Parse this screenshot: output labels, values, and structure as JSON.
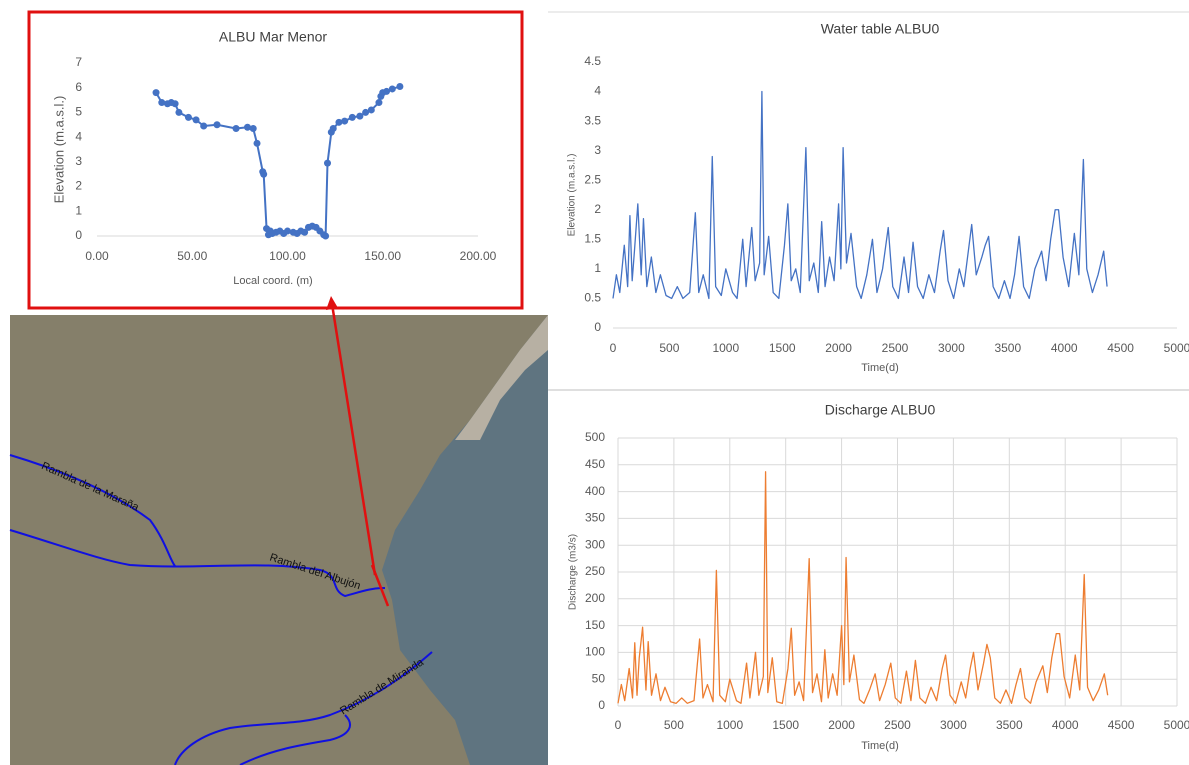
{
  "chart_data": [
    {
      "type": "line",
      "title": "ALBU Mar Menor",
      "xlabel": "Local coord. (m)",
      "ylabel": "Elevation (m.a.s.l.)",
      "color": "#4472c4",
      "markers": true,
      "grid": false,
      "x": [
        31,
        34,
        37,
        39,
        41,
        43,
        48,
        52,
        56,
        63,
        73,
        79,
        82,
        84,
        87,
        87.5,
        89,
        90,
        91,
        92,
        94,
        96,
        98,
        100,
        103,
        105,
        107,
        109,
        111,
        113,
        115,
        117,
        119,
        120,
        121,
        123,
        124,
        127,
        130,
        134,
        138,
        141,
        144,
        148,
        149,
        150,
        152,
        155,
        159
      ],
      "values": [
        5.8,
        5.4,
        5.35,
        5.4,
        5.35,
        5.0,
        4.8,
        4.7,
        4.45,
        4.5,
        4.35,
        4.4,
        4.35,
        3.75,
        2.6,
        2.5,
        0.3,
        0.05,
        0.2,
        0.1,
        0.15,
        0.2,
        0.1,
        0.2,
        0.15,
        0.1,
        0.2,
        0.15,
        0.35,
        0.4,
        0.35,
        0.2,
        0.05,
        0.0,
        2.95,
        4.2,
        4.35,
        4.6,
        4.65,
        4.8,
        4.85,
        5.0,
        5.1,
        5.4,
        5.65,
        5.8,
        5.85,
        5.95,
        6.05
      ],
      "xlim": [
        0,
        200
      ],
      "xticks": [
        {
          "value": 0,
          "label": "0.00"
        },
        {
          "value": 50,
          "label": "50.00"
        },
        {
          "value": 100,
          "label": "100.00"
        },
        {
          "value": 150,
          "label": "150.00"
        },
        {
          "value": 200,
          "label": "200.00"
        }
      ],
      "ylim": [
        0,
        7
      ],
      "yticks": [
        0,
        1,
        2,
        3,
        4,
        5,
        6,
        7
      ]
    },
    {
      "type": "line",
      "title": "Water table ALBU0",
      "xlabel": "Time(d)",
      "ylabel": "Elevation (m.a.s.l.)",
      "color": "#4472c4",
      "markers": false,
      "grid": false,
      "x": [
        0,
        30,
        60,
        100,
        130,
        150,
        170,
        190,
        220,
        250,
        270,
        300,
        340,
        380,
        420,
        470,
        520,
        570,
        620,
        680,
        730,
        760,
        800,
        850,
        880,
        910,
        960,
        1000,
        1060,
        1100,
        1150,
        1180,
        1230,
        1260,
        1300,
        1320,
        1340,
        1380,
        1420,
        1470,
        1520,
        1550,
        1580,
        1620,
        1660,
        1710,
        1740,
        1780,
        1820,
        1850,
        1880,
        1920,
        1960,
        2000,
        2020,
        2040,
        2070,
        2110,
        2160,
        2200,
        2250,
        2300,
        2340,
        2390,
        2440,
        2480,
        2530,
        2580,
        2620,
        2660,
        2700,
        2750,
        2800,
        2850,
        2900,
        2930,
        2970,
        3020,
        3070,
        3110,
        3150,
        3180,
        3220,
        3270,
        3300,
        3330,
        3370,
        3420,
        3470,
        3520,
        3560,
        3600,
        3640,
        3690,
        3740,
        3800,
        3840,
        3880,
        3920,
        3950,
        3990,
        4040,
        4090,
        4130,
        4170,
        4200,
        4250,
        4300,
        4350,
        4380
      ],
      "values": [
        0.5,
        0.9,
        0.6,
        1.4,
        0.7,
        1.9,
        0.8,
        1.3,
        2.1,
        0.9,
        1.85,
        0.7,
        1.2,
        0.6,
        0.9,
        0.55,
        0.5,
        0.7,
        0.5,
        0.6,
        1.95,
        0.6,
        0.9,
        0.5,
        2.9,
        0.7,
        0.55,
        1.0,
        0.6,
        0.5,
        1.5,
        0.7,
        1.7,
        0.8,
        1.1,
        4.0,
        0.9,
        1.55,
        0.6,
        0.5,
        1.4,
        2.1,
        0.8,
        1.0,
        0.6,
        3.05,
        0.8,
        1.1,
        0.6,
        1.8,
        0.7,
        1.2,
        0.8,
        2.1,
        1.0,
        3.05,
        1.1,
        1.6,
        0.7,
        0.5,
        0.9,
        1.5,
        0.6,
        1.0,
        1.7,
        0.7,
        0.5,
        1.2,
        0.6,
        1.45,
        0.7,
        0.5,
        0.9,
        0.6,
        1.3,
        1.65,
        0.8,
        0.5,
        1.0,
        0.7,
        1.3,
        1.75,
        0.9,
        1.2,
        1.4,
        1.55,
        0.7,
        0.5,
        0.8,
        0.5,
        0.9,
        1.55,
        0.7,
        0.5,
        1.0,
        1.3,
        0.8,
        1.5,
        2.0,
        2.0,
        1.2,
        0.7,
        1.6,
        0.9,
        2.85,
        1.0,
        0.6,
        0.9,
        1.3,
        0.7
      ],
      "xlim": [
        0,
        5000
      ],
      "xticks": [
        0,
        500,
        1000,
        1500,
        2000,
        2500,
        3000,
        3500,
        4000,
        4500,
        5000
      ],
      "ylim": [
        0,
        4.5
      ],
      "yticks": [
        0,
        0.5,
        1,
        1.5,
        2,
        2.5,
        3,
        3.5,
        4,
        4.5
      ]
    },
    {
      "type": "line",
      "title": "Discharge ALBU0",
      "xlabel": "Time(d)",
      "ylabel": "Discharge (m3/s)",
      "color": "#ed7d31",
      "markers": false,
      "grid": true,
      "x": [
        0,
        30,
        60,
        100,
        130,
        150,
        170,
        190,
        220,
        250,
        270,
        300,
        340,
        380,
        420,
        470,
        520,
        570,
        620,
        680,
        730,
        760,
        800,
        850,
        880,
        910,
        960,
        1000,
        1060,
        1100,
        1150,
        1180,
        1230,
        1260,
        1300,
        1320,
        1340,
        1380,
        1420,
        1470,
        1520,
        1550,
        1580,
        1620,
        1660,
        1710,
        1740,
        1780,
        1820,
        1850,
        1880,
        1920,
        1960,
        2000,
        2020,
        2040,
        2070,
        2110,
        2160,
        2200,
        2250,
        2300,
        2340,
        2390,
        2440,
        2480,
        2530,
        2580,
        2620,
        2660,
        2700,
        2750,
        2800,
        2850,
        2900,
        2930,
        2970,
        3020,
        3070,
        3110,
        3150,
        3180,
        3220,
        3270,
        3300,
        3330,
        3370,
        3420,
        3470,
        3520,
        3560,
        3600,
        3640,
        3690,
        3740,
        3800,
        3840,
        3880,
        3920,
        3950,
        3990,
        4040,
        4090,
        4130,
        4170,
        4200,
        4250,
        4300,
        4350,
        4380
      ],
      "values": [
        5,
        40,
        10,
        70,
        15,
        118,
        20,
        90,
        147,
        30,
        120,
        20,
        60,
        10,
        35,
        8,
        5,
        15,
        5,
        10,
        125,
        15,
        40,
        8,
        253,
        20,
        8,
        50,
        10,
        5,
        80,
        15,
        100,
        20,
        55,
        437,
        25,
        90,
        8,
        5,
        70,
        145,
        20,
        45,
        10,
        275,
        25,
        60,
        8,
        105,
        15,
        60,
        20,
        150,
        40,
        277,
        45,
        95,
        12,
        5,
        30,
        60,
        10,
        40,
        80,
        15,
        5,
        65,
        10,
        85,
        15,
        5,
        35,
        10,
        70,
        95,
        20,
        5,
        45,
        15,
        70,
        100,
        30,
        80,
        115,
        90,
        15,
        5,
        30,
        5,
        40,
        70,
        15,
        5,
        45,
        75,
        25,
        90,
        135,
        135,
        55,
        15,
        95,
        30,
        245,
        35,
        10,
        30,
        60,
        20
      ],
      "xlim": [
        0,
        5000
      ],
      "xticks": [
        0,
        500,
        1000,
        1500,
        2000,
        2500,
        3000,
        3500,
        4000,
        4500,
        5000
      ],
      "ylim": [
        0,
        500
      ],
      "yticks": [
        0,
        50,
        100,
        150,
        200,
        250,
        300,
        350,
        400,
        450,
        500
      ]
    }
  ],
  "map": {
    "labels": [
      "Rambla de la Maraña",
      "Rambla del Albujón",
      "Rambla de Miranda"
    ]
  }
}
